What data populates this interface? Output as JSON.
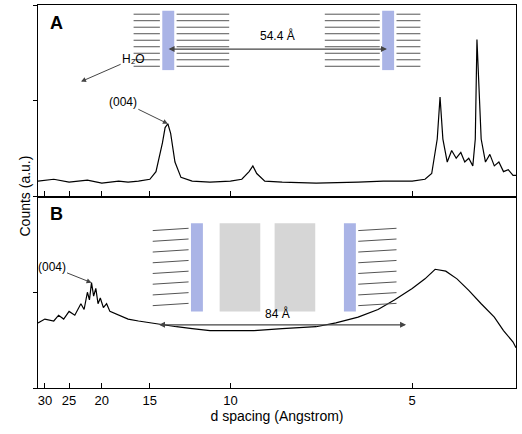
{
  "chart_data": [
    {
      "type": "line",
      "title": "A",
      "ylabel": "Counts (a.u.)",
      "color": "#000000",
      "tick_labels": false,
      "xlim": [
        31.7,
        3.67
      ],
      "xticks": [
        30,
        25,
        20,
        15,
        10,
        5
      ],
      "ylim": [
        0,
        100
      ],
      "yticks": [
        0,
        50,
        100
      ],
      "x": [
        31.7,
        28,
        25,
        22,
        20,
        18,
        17,
        16,
        15,
        14.5,
        14.0,
        13.8,
        13.6,
        13.4,
        13.1,
        12.7,
        12,
        11,
        10,
        9.5,
        9.2,
        9.05,
        8.9,
        8.6,
        8,
        7,
        6,
        5.5,
        5.0,
        4.8,
        4.7,
        4.62,
        4.58,
        4.54,
        4.48,
        4.42,
        4.36,
        4.3,
        4.25,
        4.2,
        4.15,
        4.12,
        4.1,
        4.08,
        4.05,
        4.0,
        3.95,
        3.9,
        3.85,
        3.8,
        3.75,
        3.7,
        3.67
      ],
      "values": [
        8,
        9,
        7.5,
        8.5,
        7,
        8,
        7.5,
        8,
        9,
        13,
        28,
        36,
        38,
        33,
        18,
        10,
        8,
        7.5,
        8,
        9,
        13,
        16,
        12,
        8,
        7.5,
        7,
        7.5,
        8,
        8,
        9,
        12,
        30,
        52,
        30,
        18,
        24,
        20,
        23,
        18,
        20,
        16,
        30,
        82,
        60,
        30,
        18,
        22,
        16,
        18,
        13,
        14,
        11,
        11
      ],
      "annotations": [
        {
          "text": "(004)",
          "x": 13.6,
          "y": 38
        },
        {
          "text": "H₂O"
        },
        {
          "text": "54.4 Å"
        }
      ]
    },
    {
      "type": "line",
      "title": "B",
      "xlabel": "d spacing (Angstrom)",
      "color": "#000000",
      "tick_labels": "x",
      "xlim": [
        31.7,
        3.67
      ],
      "xticks": [
        30,
        25,
        20,
        15,
        10,
        5
      ],
      "ylim": [
        0,
        100
      ],
      "yticks": [
        0,
        50,
        100
      ],
      "x": [
        31.7,
        30,
        28,
        27,
        26,
        25,
        24,
        23,
        22.5,
        22,
        21.7,
        21.4,
        21.1,
        20.8,
        20.5,
        20.2,
        19.8,
        19.4,
        19,
        18,
        17,
        16,
        15,
        14,
        13,
        12,
        11,
        10,
        9,
        8,
        7,
        6.5,
        6,
        5.6,
        5.3,
        5.0,
        4.8,
        4.65,
        4.5,
        4.35,
        4.2,
        4.05,
        3.9,
        3.8,
        3.7,
        3.67
      ],
      "values": [
        34,
        36,
        35,
        38,
        36,
        40,
        38,
        44,
        41,
        50,
        46,
        55,
        48,
        52,
        44,
        47,
        42,
        44,
        40,
        38,
        36,
        35,
        34,
        33,
        32,
        31,
        30,
        30,
        30,
        31,
        32,
        34,
        37,
        41,
        46,
        52,
        57,
        62,
        61,
        57,
        51,
        44,
        37,
        30,
        24,
        21
      ],
      "annotations": [
        {
          "text": "(004)",
          "x": 21.4,
          "y": 55
        },
        {
          "text": "84 Å"
        }
      ]
    }
  ]
}
